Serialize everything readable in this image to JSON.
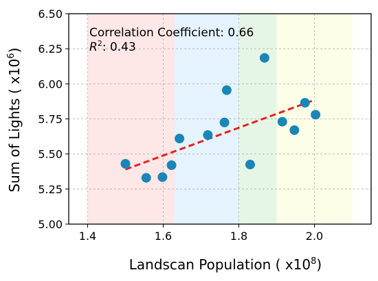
{
  "chart_data": {
    "type": "scatter",
    "xlabel": "Landscan Population ( x10",
    "xlabel_exp": "8",
    "xlabel_suffix": ")",
    "ylabel": "Sum of Lights ( x10",
    "ylabel_exp": "6",
    "ylabel_suffix": ")",
    "xlim": [
      1.35,
      2.15
    ],
    "ylim": [
      5.0,
      6.5
    ],
    "xticks": [
      1.4,
      1.6,
      1.8,
      2.0
    ],
    "xtick_labels": [
      "1.4",
      "1.6",
      "1.8",
      "2.0"
    ],
    "yticks": [
      5.0,
      5.25,
      5.5,
      5.75,
      6.0,
      6.25,
      6.5
    ],
    "ytick_labels": [
      "5.00",
      "5.25",
      "5.50",
      "5.75",
      "6.00",
      "6.25",
      "6.50"
    ],
    "grid": true,
    "annotations": {
      "correlation_label": "Correlation Coefficient: 0.66",
      "r2_symbol": "R",
      "r2_exp": "2",
      "r2_value": ": 0.43"
    },
    "regions": [
      {
        "x": [
          1.4,
          1.63
        ],
        "color": "#fde7e7"
      },
      {
        "x": [
          1.63,
          1.8
        ],
        "color": "#e4f3fd"
      },
      {
        "x": [
          1.8,
          1.9
        ],
        "color": "#e6f6e6"
      },
      {
        "x": [
          1.9,
          2.1
        ],
        "color": "#fcfde6"
      }
    ],
    "points": [
      {
        "x": 1.5,
        "y": 5.43
      },
      {
        "x": 1.555,
        "y": 5.33
      },
      {
        "x": 1.598,
        "y": 5.335
      },
      {
        "x": 1.622,
        "y": 5.42
      },
      {
        "x": 1.643,
        "y": 5.61
      },
      {
        "x": 1.718,
        "y": 5.635
      },
      {
        "x": 1.762,
        "y": 5.725
      },
      {
        "x": 1.768,
        "y": 5.955
      },
      {
        "x": 1.83,
        "y": 5.425
      },
      {
        "x": 1.868,
        "y": 6.185
      },
      {
        "x": 1.915,
        "y": 5.73
      },
      {
        "x": 1.947,
        "y": 5.67
      },
      {
        "x": 1.975,
        "y": 5.865
      },
      {
        "x": 2.003,
        "y": 5.78
      }
    ],
    "point_color": "#1a86b8",
    "trendline": {
      "x": [
        1.5,
        2.0
      ],
      "y": [
        5.39,
        5.885
      ],
      "color": "#e8201e",
      "style": "dashed"
    }
  }
}
